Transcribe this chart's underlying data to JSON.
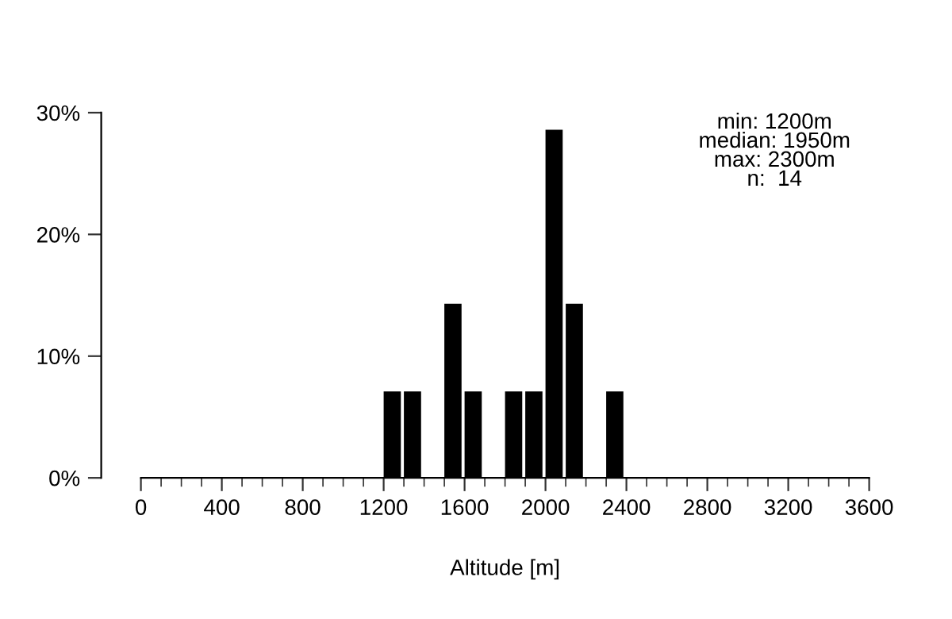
{
  "chart_data": {
    "type": "histogram",
    "xlabel": "Altitude [m]",
    "bins": [
      1200,
      1300,
      1400,
      1500,
      1600,
      1700,
      1800,
      1900,
      2000,
      2100,
      2200,
      2300,
      2400
    ],
    "values": [
      7.1,
      7.1,
      0,
      14.3,
      7.1,
      0,
      7.1,
      7.1,
      28.6,
      14.3,
      0,
      7.1
    ],
    "color": "#000000",
    "xlim": [
      0,
      3600
    ],
    "xticks": [
      0,
      {
        "value": 100,
        "label": null
      },
      {
        "value": 200,
        "label": null
      },
      {
        "value": 300,
        "label": null
      },
      400,
      {
        "value": 500,
        "label": null
      },
      {
        "value": 600,
        "label": null
      },
      {
        "value": 700,
        "label": null
      },
      800,
      {
        "value": 900,
        "label": null
      },
      {
        "value": 1000,
        "label": null
      },
      {
        "value": 1100,
        "label": null
      },
      1200,
      {
        "value": 1300,
        "label": null
      },
      {
        "value": 1400,
        "label": null
      },
      {
        "value": 1500,
        "label": null
      },
      1600,
      {
        "value": 1700,
        "label": null
      },
      {
        "value": 1800,
        "label": null
      },
      {
        "value": 1900,
        "label": null
      },
      2000,
      {
        "value": 2100,
        "label": null
      },
      {
        "value": 2200,
        "label": null
      },
      {
        "value": 2300,
        "label": null
      },
      2400,
      {
        "value": 2500,
        "label": null
      },
      {
        "value": 2600,
        "label": null
      },
      {
        "value": 2700,
        "label": null
      },
      2800,
      {
        "value": 2900,
        "label": null
      },
      {
        "value": 3000,
        "label": null
      },
      {
        "value": 3100,
        "label": null
      },
      3200,
      {
        "value": 3300,
        "label": null
      },
      {
        "value": 3400,
        "label": null
      },
      {
        "value": 3500,
        "label": null
      },
      3600
    ],
    "ylim": [
      0,
      30
    ],
    "yticks": [
      {
        "value": 0,
        "label": "0%"
      },
      {
        "value": 10,
        "label": "10%"
      },
      {
        "value": 20,
        "label": "20%"
      },
      {
        "value": 30,
        "label": "30%"
      }
    ],
    "annotations": [
      "min: 1200m",
      "median: 1950m",
      "max: 2300m",
      "n:  14"
    ],
    "grid": false
  }
}
